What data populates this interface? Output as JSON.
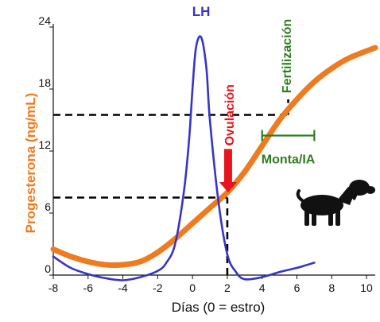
{
  "chart_data": {
    "type": "line",
    "xlabel": "Días (0 = estro)",
    "ylabel": "Progesterona (ng/mL)",
    "xlim": [
      -8,
      10.5
    ],
    "ylim": [
      0,
      24
    ],
    "x_ticks": [
      "-8",
      "-6",
      "-4",
      "-2",
      "0",
      "2",
      "4",
      "6",
      "8",
      "10"
    ],
    "y_ticks": [
      "0",
      "6",
      "12",
      "18",
      "24"
    ],
    "colors": {
      "progesterone": "#f07a1e",
      "lh": "#3535c8",
      "ovulation": "#e8141e",
      "fertilization": "#2e7d1f",
      "guides": "#000000"
    },
    "series": [
      {
        "name": "",
        "key": "progesterone",
        "x": [
          -8,
          -7,
          -6,
          -5,
          -4,
          -3,
          -2,
          -1,
          0,
          1,
          2,
          3,
          4,
          5,
          6,
          7,
          8,
          9,
          10.5
        ],
        "y": [
          2.5,
          1.8,
          1.3,
          1.0,
          1.0,
          1.3,
          2.2,
          3.5,
          5.0,
          6.5,
          8.0,
          10.0,
          12.5,
          15.0,
          17.0,
          18.7,
          20.0,
          21.0,
          22.0
        ]
      },
      {
        "name": "LH",
        "key": "lh",
        "x": [
          -8,
          -7,
          -6,
          -5,
          -4,
          -3,
          -2,
          -1.5,
          -1,
          -0.5,
          -0.2,
          0,
          0.2,
          0.5,
          0.8,
          1.0,
          1.5,
          2.0,
          2.5,
          3,
          4,
          5,
          6,
          7
        ],
        "y": [
          1.8,
          0.7,
          0.1,
          -0.3,
          -0.5,
          -0.2,
          0.4,
          1.2,
          3.0,
          8.0,
          13.0,
          18.0,
          22.0,
          23.0,
          20.0,
          15.0,
          7.0,
          2.0,
          0.3,
          -0.4,
          -0.2,
          0.3,
          0.7,
          1.2
        ]
      }
    ],
    "guides": [
      {
        "type": "hline",
        "y": 7.5,
        "x_from": -8,
        "x_to": 2
      },
      {
        "type": "vline",
        "x": 2,
        "y_from": 0,
        "y_to": 7.5
      },
      {
        "type": "hline",
        "y": 15.5,
        "x_from": -8,
        "x_to": 5.5
      },
      {
        "type": "vline",
        "x": 5.5,
        "y_from": 15.5,
        "y_to": 17.0
      }
    ],
    "annotations": {
      "lh_label": "LH",
      "ovulation": {
        "label": "Ovulación",
        "arrow_x": 2,
        "arrow_y_from": 12.2,
        "arrow_y_to": 8.0
      },
      "fertilization": {
        "label": "Fertilización"
      },
      "mating": {
        "label": "Monta/IA",
        "x_from": 4,
        "x_to": 7,
        "y": 13.5
      }
    },
    "grid": false,
    "legend": "none"
  }
}
